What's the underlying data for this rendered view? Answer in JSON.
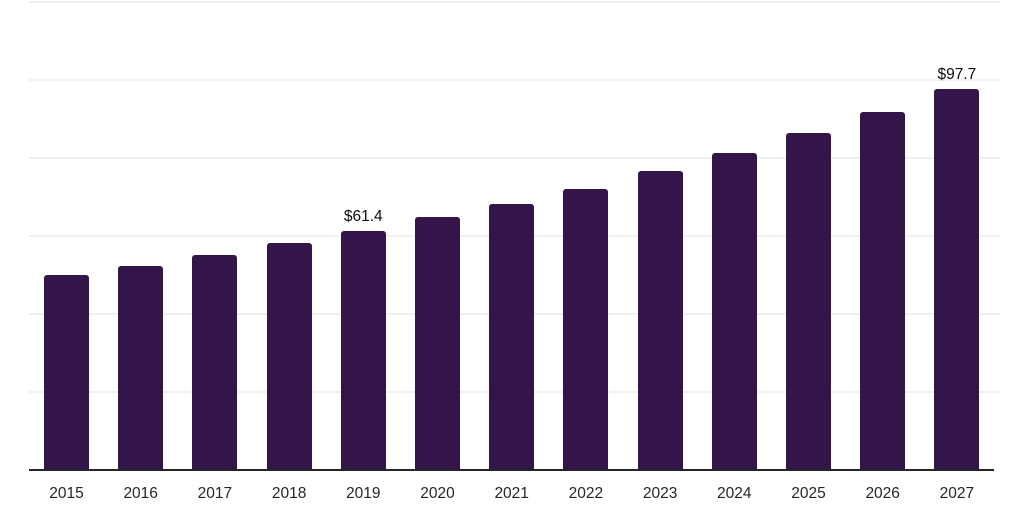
{
  "chart_data": {
    "type": "bar",
    "title": "",
    "xlabel": "",
    "ylabel": "",
    "categories": [
      "2015",
      "2016",
      "2017",
      "2018",
      "2019",
      "2020",
      "2021",
      "2022",
      "2023",
      "2024",
      "2025",
      "2026",
      "2027"
    ],
    "values": [
      49.9,
      52.4,
      55.1,
      58.1,
      61.4,
      64.8,
      68.2,
      72.1,
      76.6,
      81.2,
      86.4,
      91.7,
      97.7
    ],
    "data_labels": [
      {
        "category": "2019",
        "text": "$61.4"
      },
      {
        "category": "2027",
        "text": "$97.7"
      }
    ],
    "ylim": [
      0,
      120
    ],
    "gridline_step": 20,
    "grid": true,
    "y_tick_labels_visible": false,
    "legend_position": "none",
    "colors": {
      "bar": "#341549",
      "gridline": "#f1f1f1",
      "axis_line": "#262626",
      "data_label_text": "#0d0d0d",
      "tick_label_text": "#262626",
      "background": "#ffffff"
    }
  }
}
